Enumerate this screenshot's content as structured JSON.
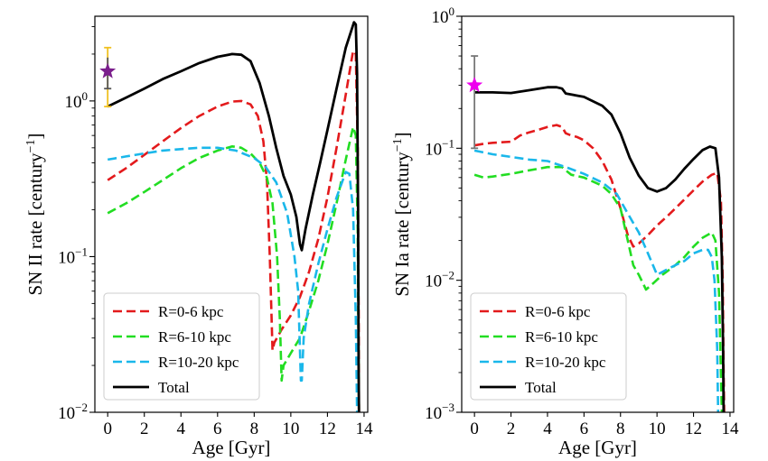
{
  "chart_data": [
    {
      "type": "line",
      "xlabel": "Age [Gyr]",
      "ylabel": "SN II rate [century$^{-1}$]",
      "ylabel_parts": {
        "base": "SN II rate [century",
        "sup": "−1",
        "close": "]"
      },
      "yscale": "log",
      "xlim": [
        -0.7,
        14.2
      ],
      "ylim": [
        0.01,
        3.5
      ],
      "x_ticks": [
        0,
        2,
        4,
        6,
        8,
        10,
        12,
        14
      ],
      "x_tick_labels": [
        "0",
        "2",
        "4",
        "6",
        "8",
        "10",
        "12",
        "14"
      ],
      "y_ticks": [
        {
          "value": 0.01,
          "base": "10",
          "exp": "−2"
        },
        {
          "value": 0.1,
          "base": "10",
          "exp": "−1"
        },
        {
          "value": 1,
          "base": "10",
          "exp": "0"
        }
      ],
      "legend_position": "lower-left",
      "series": [
        {
          "name": "R=0-6 kpc",
          "color": "#e31a1c",
          "style": "dashed",
          "points": [
            [
              0,
              0.31
            ],
            [
              1,
              0.37
            ],
            [
              2,
              0.45
            ],
            [
              3,
              0.55
            ],
            [
              4,
              0.67
            ],
            [
              5,
              0.8
            ],
            [
              6,
              0.92
            ],
            [
              6.8,
              0.99
            ],
            [
              7.3,
              1.0
            ],
            [
              7.8,
              0.95
            ],
            [
              8.2,
              0.8
            ],
            [
              8.5,
              0.55
            ],
            [
              8.7,
              0.3
            ],
            [
              8.85,
              0.1
            ],
            [
              8.95,
              0.04
            ],
            [
              9.0,
              0.025
            ],
            [
              9.1,
              0.028
            ],
            [
              9.5,
              0.034
            ],
            [
              10,
              0.042
            ],
            [
              10.5,
              0.055
            ],
            [
              11,
              0.08
            ],
            [
              11.5,
              0.13
            ],
            [
              12,
              0.24
            ],
            [
              12.5,
              0.5
            ],
            [
              13,
              1.1
            ],
            [
              13.4,
              2.1
            ],
            [
              13.55,
              2.0
            ],
            [
              13.65,
              0.5
            ],
            [
              13.7,
              0.05
            ],
            [
              13.72,
              0.01
            ]
          ]
        },
        {
          "name": "R=6-10 kpc",
          "color": "#22dd22",
          "style": "dashed",
          "points": [
            [
              0,
              0.19
            ],
            [
              1,
              0.22
            ],
            [
              2,
              0.26
            ],
            [
              3,
              0.31
            ],
            [
              4,
              0.37
            ],
            [
              5,
              0.43
            ],
            [
              6,
              0.48
            ],
            [
              6.8,
              0.51
            ],
            [
              7.3,
              0.5
            ],
            [
              7.8,
              0.46
            ],
            [
              8.3,
              0.4
            ],
            [
              8.7,
              0.32
            ],
            [
              9.0,
              0.22
            ],
            [
              9.25,
              0.1
            ],
            [
              9.4,
              0.04
            ],
            [
              9.5,
              0.016
            ],
            [
              9.6,
              0.02
            ],
            [
              10,
              0.024
            ],
            [
              10.5,
              0.03
            ],
            [
              11,
              0.045
            ],
            [
              11.5,
              0.07
            ],
            [
              12,
              0.12
            ],
            [
              12.5,
              0.22
            ],
            [
              13,
              0.42
            ],
            [
              13.4,
              0.68
            ],
            [
              13.55,
              0.6
            ],
            [
              13.65,
              0.15
            ],
            [
              13.7,
              0.02
            ],
            [
              13.72,
              0.01
            ]
          ]
        },
        {
          "name": "R=10-20 kpc",
          "color": "#1ab7ea",
          "style": "dashed",
          "points": [
            [
              0,
              0.42
            ],
            [
              1,
              0.44
            ],
            [
              2,
              0.46
            ],
            [
              3,
              0.48
            ],
            [
              4,
              0.49
            ],
            [
              5,
              0.5
            ],
            [
              6,
              0.5
            ],
            [
              7,
              0.48
            ],
            [
              8,
              0.43
            ],
            [
              8.6,
              0.38
            ],
            [
              9.2,
              0.3
            ],
            [
              9.8,
              0.19
            ],
            [
              10.2,
              0.1
            ],
            [
              10.4,
              0.06
            ],
            [
              10.55,
              0.016
            ],
            [
              10.6,
              0.016
            ],
            [
              10.7,
              0.03
            ],
            [
              11,
              0.05
            ],
            [
              11.5,
              0.09
            ],
            [
              12,
              0.15
            ],
            [
              12.5,
              0.24
            ],
            [
              13.0,
              0.35
            ],
            [
              13.2,
              0.34
            ],
            [
              13.4,
              0.2
            ],
            [
              13.55,
              0.04
            ],
            [
              13.62,
              0.01
            ]
          ]
        },
        {
          "name": "Total",
          "color": "#000000",
          "style": "solid",
          "points": [
            [
              0,
              0.92
            ],
            [
              1,
              1.05
            ],
            [
              2,
              1.2
            ],
            [
              3,
              1.38
            ],
            [
              4,
              1.55
            ],
            [
              5,
              1.75
            ],
            [
              6,
              1.92
            ],
            [
              6.8,
              2.0
            ],
            [
              7.3,
              1.98
            ],
            [
              7.8,
              1.8
            ],
            [
              8.3,
              1.3
            ],
            [
              8.8,
              0.8
            ],
            [
              9.2,
              0.5
            ],
            [
              9.6,
              0.33
            ],
            [
              10,
              0.25
            ],
            [
              10.3,
              0.18
            ],
            [
              10.5,
              0.12
            ],
            [
              10.6,
              0.11
            ],
            [
              10.8,
              0.15
            ],
            [
              11.2,
              0.25
            ],
            [
              11.6,
              0.4
            ],
            [
              12,
              0.65
            ],
            [
              12.5,
              1.2
            ],
            [
              13,
              2.2
            ],
            [
              13.45,
              3.2
            ],
            [
              13.55,
              3.1
            ],
            [
              13.62,
              1.5
            ],
            [
              13.67,
              0.2
            ],
            [
              13.7,
              0.02
            ],
            [
              13.72,
              0.01
            ]
          ]
        }
      ],
      "observation": {
        "x": 0,
        "y": 1.55,
        "marker": "star",
        "marker_color": "#7b1f8c",
        "errbar_low": 0.92,
        "errbar_high": 2.2,
        "errbar_color": "#f0c020",
        "inner_err_low": 1.2,
        "inner_err_high": 1.9,
        "inner_err_color": "#555555"
      }
    },
    {
      "type": "line",
      "xlabel": "Age [Gyr]",
      "ylabel": "SN Ia rate [century$^{-1}$]",
      "ylabel_parts": {
        "base": "SN Ia rate [century",
        "sup": "−1",
        "close": "]"
      },
      "yscale": "log",
      "xlim": [
        -0.7,
        14.2
      ],
      "ylim": [
        0.001,
        1.0
      ],
      "x_ticks": [
        0,
        2,
        4,
        6,
        8,
        10,
        12,
        14
      ],
      "x_tick_labels": [
        "0",
        "2",
        "4",
        "6",
        "8",
        "10",
        "12",
        "14"
      ],
      "y_ticks": [
        {
          "value": 0.001,
          "base": "10",
          "exp": "−3"
        },
        {
          "value": 0.01,
          "base": "10",
          "exp": "−2"
        },
        {
          "value": 0.1,
          "base": "10",
          "exp": "−1"
        },
        {
          "value": 1,
          "base": "10",
          "exp": "0"
        }
      ],
      "legend_position": "lower-left",
      "series": [
        {
          "name": "R=0-6 kpc",
          "color": "#e31a1c",
          "style": "dashed",
          "points": [
            [
              0,
              0.105
            ],
            [
              0.5,
              0.108
            ],
            [
              1,
              0.11
            ],
            [
              2,
              0.112
            ],
            [
              2.5,
              0.125
            ],
            [
              3,
              0.132
            ],
            [
              3.5,
              0.138
            ],
            [
              4,
              0.145
            ],
            [
              4.5,
              0.15
            ],
            [
              4.8,
              0.145
            ],
            [
              5,
              0.13
            ],
            [
              5.3,
              0.125
            ],
            [
              5.6,
              0.122
            ],
            [
              6,
              0.115
            ],
            [
              6.5,
              0.1
            ],
            [
              7,
              0.08
            ],
            [
              7.5,
              0.058
            ],
            [
              8,
              0.035
            ],
            [
              8.4,
              0.022
            ],
            [
              8.7,
              0.018
            ],
            [
              9.0,
              0.019
            ],
            [
              9.5,
              0.022
            ],
            [
              10,
              0.026
            ],
            [
              10.5,
              0.03
            ],
            [
              11,
              0.035
            ],
            [
              11.5,
              0.041
            ],
            [
              12,
              0.048
            ],
            [
              12.5,
              0.056
            ],
            [
              13,
              0.063
            ],
            [
              13.3,
              0.065
            ],
            [
              13.5,
              0.04
            ],
            [
              13.6,
              0.01
            ],
            [
              13.65,
              0.002
            ],
            [
              13.68,
              0.001
            ]
          ]
        },
        {
          "name": "R=6-10 kpc",
          "color": "#22dd22",
          "style": "dashed",
          "points": [
            [
              0,
              0.063
            ],
            [
              0.5,
              0.06
            ],
            [
              1,
              0.061
            ],
            [
              2,
              0.064
            ],
            [
              3,
              0.068
            ],
            [
              4,
              0.072
            ],
            [
              4.8,
              0.072
            ],
            [
              5,
              0.068
            ],
            [
              5.3,
              0.063
            ],
            [
              6,
              0.06
            ],
            [
              7,
              0.052
            ],
            [
              7.5,
              0.045
            ],
            [
              8,
              0.035
            ],
            [
              8.4,
              0.02
            ],
            [
              8.7,
              0.013
            ],
            [
              9.0,
              0.011
            ],
            [
              9.4,
              0.0085
            ],
            [
              9.8,
              0.0095
            ],
            [
              10.3,
              0.011
            ],
            [
              11,
              0.013
            ],
            [
              11.5,
              0.015
            ],
            [
              12,
              0.018
            ],
            [
              12.5,
              0.021
            ],
            [
              13,
              0.023
            ],
            [
              13.2,
              0.02
            ],
            [
              13.4,
              0.008
            ],
            [
              13.5,
              0.002
            ],
            [
              13.55,
              0.001
            ]
          ]
        },
        {
          "name": "R=10-20 kpc",
          "color": "#1ab7ea",
          "style": "dashed",
          "points": [
            [
              0,
              0.096
            ],
            [
              1,
              0.09
            ],
            [
              2,
              0.086
            ],
            [
              3,
              0.082
            ],
            [
              4,
              0.08
            ],
            [
              5,
              0.072
            ],
            [
              6,
              0.064
            ],
            [
              7,
              0.055
            ],
            [
              7.8,
              0.045
            ],
            [
              8.4,
              0.032
            ],
            [
              9,
              0.023
            ],
            [
              9.5,
              0.016
            ],
            [
              10,
              0.011
            ],
            [
              10.5,
              0.012
            ],
            [
              11,
              0.013
            ],
            [
              11.5,
              0.014
            ],
            [
              12,
              0.016
            ],
            [
              12.5,
              0.017
            ],
            [
              12.8,
              0.017
            ],
            [
              13.0,
              0.015
            ],
            [
              13.15,
              0.01
            ],
            [
              13.3,
              0.003
            ],
            [
              13.35,
              0.001
            ]
          ]
        },
        {
          "name": "Total",
          "color": "#000000",
          "style": "solid",
          "points": [
            [
              0,
              0.265
            ],
            [
              1,
              0.265
            ],
            [
              2,
              0.262
            ],
            [
              3,
              0.275
            ],
            [
              4,
              0.29
            ],
            [
              4.5,
              0.29
            ],
            [
              4.8,
              0.283
            ],
            [
              5,
              0.26
            ],
            [
              6,
              0.245
            ],
            [
              7,
              0.21
            ],
            [
              7.5,
              0.18
            ],
            [
              8,
              0.13
            ],
            [
              8.5,
              0.085
            ],
            [
              9,
              0.062
            ],
            [
              9.5,
              0.05
            ],
            [
              10,
              0.047
            ],
            [
              10.5,
              0.05
            ],
            [
              11,
              0.058
            ],
            [
              11.5,
              0.07
            ],
            [
              12,
              0.083
            ],
            [
              12.5,
              0.097
            ],
            [
              12.9,
              0.103
            ],
            [
              13.2,
              0.1
            ],
            [
              13.4,
              0.06
            ],
            [
              13.55,
              0.015
            ],
            [
              13.62,
              0.003
            ],
            [
              13.65,
              0.001
            ]
          ]
        }
      ],
      "observation": {
        "x": 0,
        "y": 0.3,
        "marker": "star",
        "marker_color": "#ee00ee",
        "errbar_low": 0.1,
        "errbar_high": 0.5,
        "errbar_color": "#777777"
      }
    }
  ]
}
